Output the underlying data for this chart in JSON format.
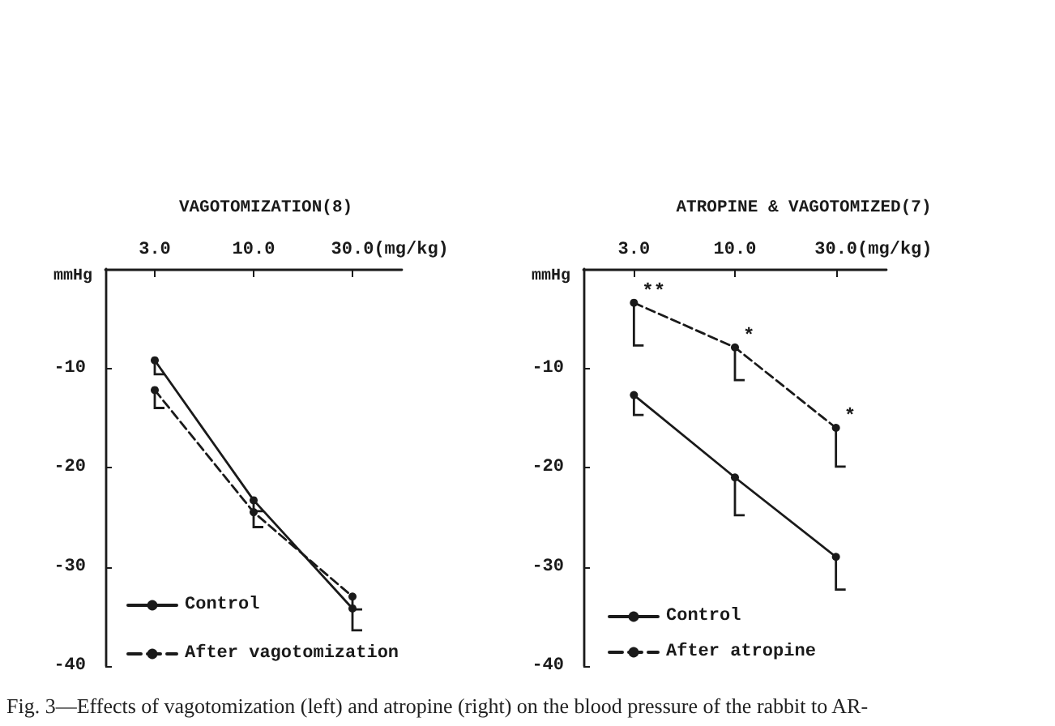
{
  "chart_data": [
    {
      "type": "line",
      "title": "VAGOTOMIZATION(8)",
      "xlabel": "(mg/kg)",
      "ylabel": "mmHg",
      "categories": [
        "3.0",
        "10.0",
        "30.0"
      ],
      "series": [
        {
          "name": "Control",
          "color": "#1a1a1a",
          "line_style": "solid",
          "values": [
            -9.2,
            -23.3,
            -34.2
          ],
          "errors": [
            [
              -10.6,
              -9.2
            ],
            [
              -24.4,
              -23.3
            ],
            [
              -36.4,
              -34.2
            ]
          ]
        },
        {
          "name": "After vagotomization",
          "color": "#1a1a1a",
          "line_style": "dashed",
          "values": [
            -12.2,
            -24.5,
            -33.0
          ],
          "errors": [
            [
              -14.0,
              -12.2
            ],
            [
              -26.0,
              -24.5
            ],
            [
              -34.3,
              -33.0
            ]
          ]
        }
      ],
      "ylim": [
        -40,
        0
      ],
      "yticks": [
        -10,
        -20,
        -30,
        -40
      ],
      "marker": "circle",
      "legend": "bottom",
      "annotations": [
        "Fig. 3—Effects of vagotomization (left) and atropine (right) on the blood pressure of the rabbit to AR-"
      ]
    },
    {
      "type": "line",
      "title": "ATROPINE & VAGOTOMIZED(7)",
      "xlabel": "(mg/kg)",
      "ylabel": "mmHg",
      "categories": [
        "3.0",
        "10.0",
        "30.0"
      ],
      "series": [
        {
          "name": "Control",
          "color": "#1a1a1a",
          "line_style": "solid",
          "values": [
            -12.7,
            -21.0,
            -29.0
          ],
          "errors": [
            [
              -14.7,
              -12.7
            ],
            [
              -24.8,
              -21.0
            ],
            [
              -32.3,
              -29.0
            ]
          ]
        },
        {
          "name": "After atropine",
          "color": "#1a1a1a",
          "line_style": "dashed",
          "values": [
            -3.4,
            -7.9,
            -16.0
          ],
          "errors": [
            [
              -7.7,
              -3.4
            ],
            [
              -11.2,
              -7.9
            ],
            [
              -19.9,
              -16.0
            ]
          ]
        }
      ],
      "ylim": [
        -40,
        0
      ],
      "yticks": [
        -10,
        -20,
        -30,
        -40
      ],
      "marker": "circle",
      "legend": "bottom left",
      "annotations": [
        {
          "text": "**",
          "x": "3.0",
          "y": -3.4
        },
        {
          "text": "*",
          "x": "10.0",
          "y": -7.9
        },
        {
          "text": "*",
          "x": "30.0",
          "y": -16.0
        }
      ]
    }
  ]
}
